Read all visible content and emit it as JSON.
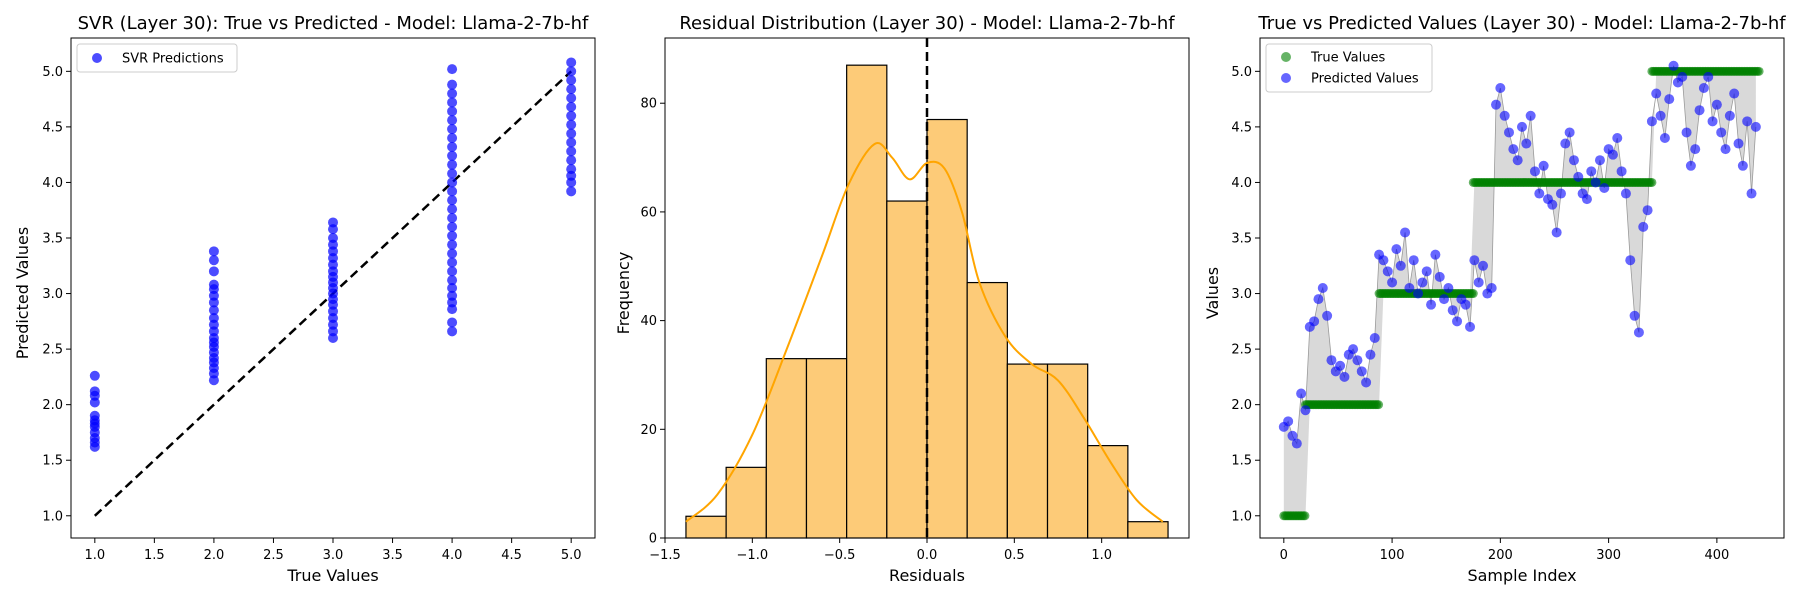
{
  "chart_data": [
    {
      "type": "scatter",
      "title": "SVR (Layer 30): True vs Predicted - Model: Llama-2-7b-hf",
      "xlabel": "True Values",
      "ylabel": "Predicted Values",
      "xlim": [
        0.8,
        5.2
      ],
      "ylim": [
        0.8,
        5.3
      ],
      "xticks": [
        "1.0",
        "1.5",
        "2.0",
        "2.5",
        "3.0",
        "3.5",
        "4.0",
        "4.5",
        "5.0"
      ],
      "yticks": [
        "1.0",
        "1.5",
        "2.0",
        "2.5",
        "3.0",
        "3.5",
        "4.0",
        "4.5",
        "5.0"
      ],
      "legend": {
        "placement": "top-left",
        "entries": [
          {
            "label": "SVR Predictions",
            "color": "#0000ff"
          }
        ]
      },
      "reference_line": {
        "from": [
          1,
          1
        ],
        "to": [
          5,
          5
        ],
        "style": "dashed",
        "color": "#000000"
      },
      "series": [
        {
          "name": "SVR Predictions",
          "color": "#0000ff",
          "points": [
            [
              1,
              1.62
            ],
            [
              1,
              1.66
            ],
            [
              1,
              1.7
            ],
            [
              1,
              1.75
            ],
            [
              1,
              1.8
            ],
            [
              1,
              1.83
            ],
            [
              1,
              1.86
            ],
            [
              1,
              1.9
            ],
            [
              1,
              2.02
            ],
            [
              1,
              2.08
            ],
            [
              1,
              2.12
            ],
            [
              1,
              2.26
            ],
            [
              2,
              2.22
            ],
            [
              2,
              2.28
            ],
            [
              2,
              2.33
            ],
            [
              2,
              2.38
            ],
            [
              2,
              2.42
            ],
            [
              2,
              2.47
            ],
            [
              2,
              2.52
            ],
            [
              2,
              2.56
            ],
            [
              2,
              2.6
            ],
            [
              2,
              2.66
            ],
            [
              2,
              2.72
            ],
            [
              2,
              2.78
            ],
            [
              2,
              2.85
            ],
            [
              2,
              2.92
            ],
            [
              2,
              2.98
            ],
            [
              2,
              3.04
            ],
            [
              2,
              3.08
            ],
            [
              2,
              3.2
            ],
            [
              2,
              3.3
            ],
            [
              2,
              3.38
            ],
            [
              3,
              2.6
            ],
            [
              3,
              2.66
            ],
            [
              3,
              2.72
            ],
            [
              3,
              2.78
            ],
            [
              3,
              2.84
            ],
            [
              3,
              2.9
            ],
            [
              3,
              2.95
            ],
            [
              3,
              3.0
            ],
            [
              3,
              3.05
            ],
            [
              3,
              3.1
            ],
            [
              3,
              3.15
            ],
            [
              3,
              3.2
            ],
            [
              3,
              3.26
            ],
            [
              3,
              3.32
            ],
            [
              3,
              3.38
            ],
            [
              3,
              3.44
            ],
            [
              3,
              3.5
            ],
            [
              3,
              3.58
            ],
            [
              3,
              3.64
            ],
            [
              4,
              2.66
            ],
            [
              4,
              2.74
            ],
            [
              4,
              2.86
            ],
            [
              4,
              2.92
            ],
            [
              4,
              2.98
            ],
            [
              4,
              3.05
            ],
            [
              4,
              3.12
            ],
            [
              4,
              3.2
            ],
            [
              4,
              3.28
            ],
            [
              4,
              3.36
            ],
            [
              4,
              3.44
            ],
            [
              4,
              3.52
            ],
            [
              4,
              3.6
            ],
            [
              4,
              3.68
            ],
            [
              4,
              3.76
            ],
            [
              4,
              3.84
            ],
            [
              4,
              3.92
            ],
            [
              4,
              4.0
            ],
            [
              4,
              4.08
            ],
            [
              4,
              4.16
            ],
            [
              4,
              4.24
            ],
            [
              4,
              4.32
            ],
            [
              4,
              4.4
            ],
            [
              4,
              4.48
            ],
            [
              4,
              4.56
            ],
            [
              4,
              4.64
            ],
            [
              4,
              4.72
            ],
            [
              4,
              4.8
            ],
            [
              4,
              4.88
            ],
            [
              4,
              5.02
            ],
            [
              5,
              3.92
            ],
            [
              5,
              4.0
            ],
            [
              5,
              4.06
            ],
            [
              5,
              4.12
            ],
            [
              5,
              4.2
            ],
            [
              5,
              4.28
            ],
            [
              5,
              4.36
            ],
            [
              5,
              4.44
            ],
            [
              5,
              4.52
            ],
            [
              5,
              4.6
            ],
            [
              5,
              4.68
            ],
            [
              5,
              4.76
            ],
            [
              5,
              4.84
            ],
            [
              5,
              4.92
            ],
            [
              5,
              5.0
            ],
            [
              5,
              5.08
            ]
          ]
        }
      ]
    },
    {
      "type": "bar",
      "subtype": "histogram_with_kde",
      "title": "Residual Distribution (Layer 30) - Model: Llama-2-7b-hf",
      "xlabel": "Residuals",
      "ylabel": "Frequency",
      "xlim": [
        -1.5,
        1.5
      ],
      "ylim": [
        0,
        92
      ],
      "xticks": [
        "−1.5",
        "−1.0",
        "−0.5",
        "0.0",
        "0.5",
        "1.0"
      ],
      "yticks": [
        "0",
        "20",
        "40",
        "60",
        "80"
      ],
      "bin_edges": [
        -1.38,
        -1.15,
        -0.92,
        -0.69,
        -0.46,
        -0.23,
        0.0,
        0.23,
        0.46,
        0.69,
        0.92,
        1.15,
        1.38
      ],
      "counts": [
        4,
        13,
        33,
        33,
        87,
        62,
        77,
        47,
        32,
        32,
        17,
        3
      ],
      "bar_color": "#fdcb78",
      "kde_color": "#ffa500",
      "kde": [
        [
          -1.38,
          3
        ],
        [
          -1.2,
          8
        ],
        [
          -1.0,
          19
        ],
        [
          -0.8,
          35
        ],
        [
          -0.6,
          52
        ],
        [
          -0.45,
          65
        ],
        [
          -0.3,
          72.5
        ],
        [
          -0.2,
          70
        ],
        [
          -0.1,
          66
        ],
        [
          0.0,
          69
        ],
        [
          0.1,
          68
        ],
        [
          0.2,
          60
        ],
        [
          0.3,
          47
        ],
        [
          0.45,
          37
        ],
        [
          0.6,
          32
        ],
        [
          0.75,
          29
        ],
        [
          0.9,
          22
        ],
        [
          1.05,
          14
        ],
        [
          1.2,
          7
        ],
        [
          1.35,
          3
        ]
      ],
      "reference_line": {
        "x": 0,
        "style": "dashed",
        "color": "#000000"
      }
    },
    {
      "type": "scatter",
      "title": "True vs Predicted Values (Layer 30) - Model: Llama-2-7b-hf",
      "xlabel": "Sample Index",
      "ylabel": "Values",
      "xlim": [
        -22,
        462
      ],
      "ylim": [
        0.8,
        5.3
      ],
      "xticks": [
        "0",
        "100",
        "200",
        "300",
        "400"
      ],
      "yticks": [
        "1.0",
        "1.5",
        "2.0",
        "2.5",
        "3.0",
        "3.5",
        "4.0",
        "4.5",
        "5.0"
      ],
      "legend": {
        "placement": "top-left",
        "entries": [
          {
            "label": "True Values",
            "color": "#008000"
          },
          {
            "label": "Predicted Values",
            "color": "#0000ff"
          }
        ]
      },
      "true_segments": [
        {
          "x": [
            0,
            20
          ],
          "y": 1
        },
        {
          "x": [
            20,
            88
          ],
          "y": 2
        },
        {
          "x": [
            88,
            175
          ],
          "y": 3
        },
        {
          "x": [
            175,
            340
          ],
          "y": 4
        },
        {
          "x": [
            340,
            440
          ],
          "y": 5
        }
      ],
      "series": [
        {
          "name": "True Values",
          "color": "#008000",
          "x": [
            0,
            20,
            40,
            60,
            88,
            120,
            150,
            175,
            200,
            230,
            260,
            290,
            320,
            340,
            370,
            400,
            440
          ],
          "y": [
            1,
            1,
            2,
            2,
            2,
            3,
            3,
            3,
            4,
            4,
            4,
            4,
            4,
            5,
            5,
            5,
            5
          ]
        },
        {
          "name": "Predicted Values",
          "color": "#0000ff",
          "x": [
            0,
            4,
            8,
            12,
            16,
            20,
            24,
            28,
            32,
            36,
            40,
            44,
            48,
            52,
            56,
            60,
            64,
            68,
            72,
            76,
            80,
            84,
            88,
            92,
            96,
            100,
            104,
            108,
            112,
            116,
            120,
            124,
            128,
            132,
            136,
            140,
            144,
            148,
            152,
            156,
            160,
            164,
            168,
            172,
            176,
            180,
            184,
            188,
            192,
            196,
            200,
            204,
            208,
            212,
            216,
            220,
            224,
            228,
            232,
            236,
            240,
            244,
            248,
            252,
            256,
            260,
            264,
            268,
            272,
            276,
            280,
            284,
            288,
            292,
            296,
            300,
            304,
            308,
            312,
            316,
            320,
            324,
            328,
            332,
            336,
            340,
            344,
            348,
            352,
            356,
            360,
            364,
            368,
            372,
            376,
            380,
            384,
            388,
            392,
            396,
            400,
            404,
            408,
            412,
            416,
            420,
            424,
            428,
            432,
            436
          ],
          "y": [
            1.8,
            1.85,
            1.72,
            1.65,
            2.1,
            1.95,
            2.7,
            2.75,
            2.95,
            3.05,
            2.8,
            2.4,
            2.3,
            2.35,
            2.25,
            2.45,
            2.5,
            2.4,
            2.3,
            2.2,
            2.45,
            2.6,
            3.35,
            3.3,
            3.2,
            3.1,
            3.4,
            3.25,
            3.55,
            3.05,
            3.3,
            3.0,
            3.1,
            3.2,
            2.9,
            3.35,
            3.15,
            2.95,
            3.05,
            2.85,
            2.75,
            2.95,
            2.9,
            2.7,
            3.3,
            3.1,
            3.25,
            3.0,
            3.05,
            4.7,
            4.85,
            4.6,
            4.45,
            4.3,
            4.2,
            4.5,
            4.35,
            4.6,
            4.1,
            3.9,
            4.15,
            3.85,
            3.8,
            3.55,
            3.9,
            4.35,
            4.45,
            4.2,
            4.05,
            3.9,
            3.85,
            4.1,
            4.0,
            4.2,
            3.95,
            4.3,
            4.25,
            4.4,
            4.1,
            3.9,
            3.3,
            2.8,
            2.65,
            3.6,
            3.75,
            4.55,
            4.8,
            4.6,
            4.4,
            4.75,
            5.05,
            4.9,
            4.95,
            4.45,
            4.15,
            4.3,
            4.65,
            4.85,
            4.95,
            4.55,
            4.7,
            4.45,
            4.3,
            4.6,
            4.8,
            4.35,
            4.15,
            4.55,
            3.9,
            4.5
          ]
        }
      ]
    }
  ]
}
